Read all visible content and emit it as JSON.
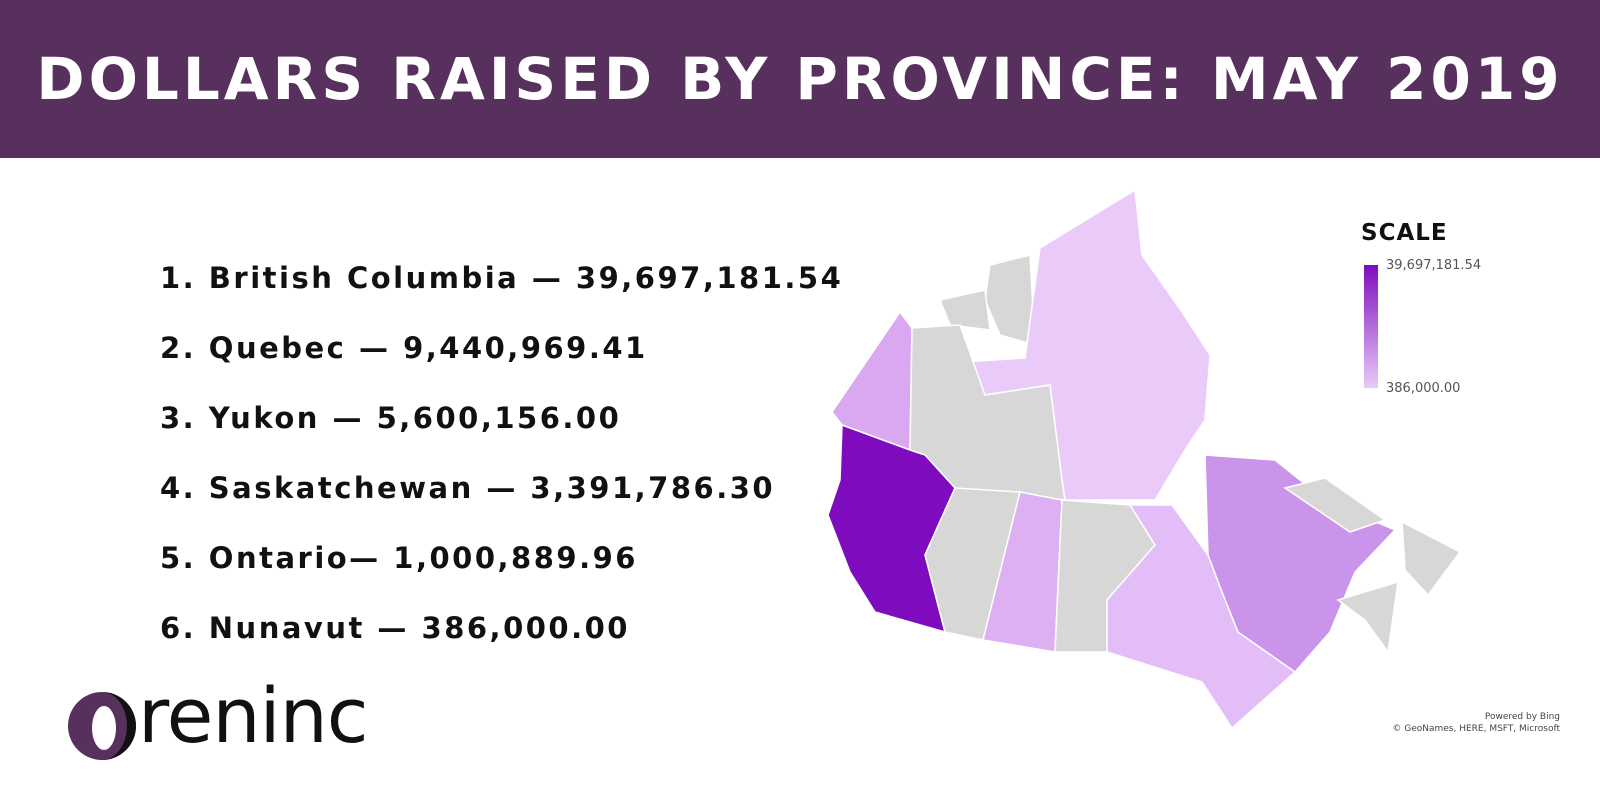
{
  "header": {
    "title": "DOLLARS RAISED BY PROVINCE: MAY 2019"
  },
  "list": {
    "items": [
      "1. British Columbia — 39,697,181.54",
      "2. Quebec — 9,440,969.41",
      "3. Yukon — 5,600,156.00",
      "4. Saskatchewan — 3,391,786.30",
      "5. Ontario— 1,000,889.96",
      "6. Nunavut — 386,000.00"
    ]
  },
  "legend": {
    "title": "SCALE",
    "max_label": "39,697,181.54",
    "min_label": "386,000.00"
  },
  "attribution": {
    "line1": "Powered by Bing",
    "line2": "© GeoNames, HERE, MSFT, Microsoft"
  },
  "logo": {
    "text": "reninc"
  }
}
